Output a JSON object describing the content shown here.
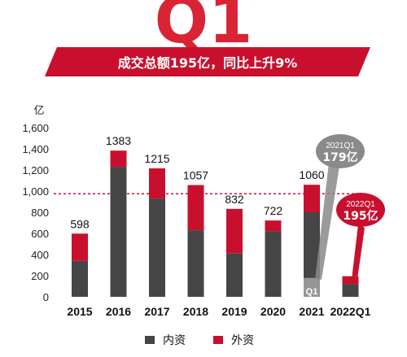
{
  "hero": {
    "big_text": "Q1",
    "headline": "成交总额195亿，同比上升9%"
  },
  "callouts": {
    "q1_2021": {
      "label": "2021Q1",
      "value": "179亿"
    },
    "q1_2022": {
      "label": "2022Q1",
      "value": "195亿"
    },
    "q1_tag": "Q1"
  },
  "colors": {
    "domestic": "#454545",
    "foreign": "#c8102e",
    "banner": "#c8102e",
    "callout_gray": "#8a8a8a",
    "reference_line": "#c8102e"
  },
  "chart_data": {
    "type": "bar",
    "stacked": true,
    "ylabel": "亿",
    "ylim": [
      0,
      1600
    ],
    "yticks": [
      "0",
      "200",
      "400",
      "600",
      "800",
      "1,000",
      "1,200",
      "1,400",
      "1,600"
    ],
    "ytick_values": [
      0,
      200,
      400,
      600,
      800,
      1000,
      1200,
      1400,
      1600
    ],
    "categories": [
      "2015",
      "2016",
      "2017",
      "2018",
      "2019",
      "2020",
      "2021",
      "2022Q1"
    ],
    "totals_labels": [
      "598",
      "1383",
      "1215",
      "1057",
      "832",
      "722",
      "1060",
      ""
    ],
    "series": [
      {
        "name": "内资",
        "color": "#454545",
        "values": [
          340,
          1230,
          930,
          630,
          410,
          620,
          800,
          120
        ]
      },
      {
        "name": "外资",
        "color": "#c8102e",
        "values": [
          258,
          153,
          285,
          427,
          422,
          102,
          260,
          75
        ]
      }
    ],
    "reference_line_value": 975,
    "q1_2021_value": 179,
    "grid": false,
    "legend_position": "bottom"
  }
}
